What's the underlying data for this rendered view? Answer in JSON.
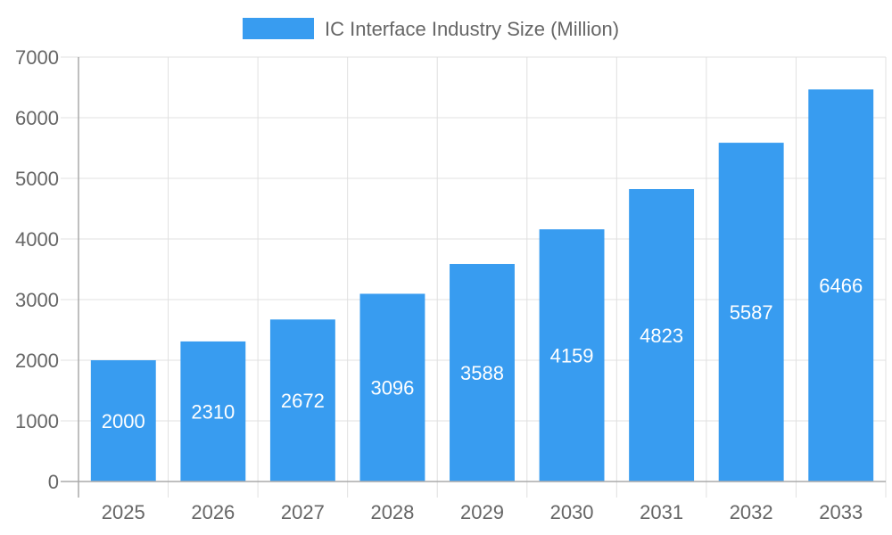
{
  "chart_data": {
    "type": "bar",
    "title": "",
    "xlabel": "",
    "ylabel": "",
    "categories": [
      "2025",
      "2026",
      "2027",
      "2028",
      "2029",
      "2030",
      "2031",
      "2032",
      "2033"
    ],
    "series": [
      {
        "name": "IC Interface Industry Size (Million)",
        "values": [
          2000,
          2310,
          2672,
          3096,
          3588,
          4159,
          4823,
          5587,
          6466
        ]
      }
    ],
    "ylim": [
      0,
      7000
    ],
    "yticks": [
      0,
      1000,
      2000,
      3000,
      4000,
      5000,
      6000,
      7000
    ],
    "grid": true,
    "legend": "top-center",
    "data_labels": true,
    "colors": {
      "bar": "#389cf0",
      "grid": "#e0e0e0",
      "axis": "#aaaaaa",
      "text": "#666666",
      "label": "#ffffff"
    }
  }
}
